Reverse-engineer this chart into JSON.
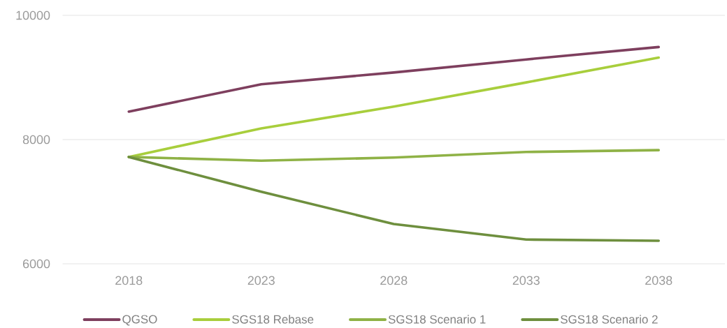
{
  "chart_data": {
    "type": "line",
    "categories": [
      "2018",
      "2023",
      "2028",
      "2033",
      "2038"
    ],
    "series": [
      {
        "name": "QGSO",
        "color": "#7e3f5e",
        "values": [
          8450,
          8890,
          9080,
          9290,
          9490
        ]
      },
      {
        "name": "SGS18 Rebase",
        "color": "#a8ce3c",
        "values": [
          7720,
          8180,
          8530,
          8920,
          9320
        ]
      },
      {
        "name": "SGS18 Scenario 1",
        "color": "#8fb246",
        "values": [
          7720,
          7660,
          7710,
          7800,
          7830
        ]
      },
      {
        "name": "SGS18 Scenario 2",
        "color": "#6e8f3e",
        "values": [
          7720,
          7160,
          6640,
          6390,
          6370
        ]
      }
    ],
    "ylim": [
      6000,
      10000
    ],
    "yticks": [
      6000,
      8000,
      10000
    ],
    "grid": "y",
    "legend": "bottom",
    "line_style": "solid"
  }
}
